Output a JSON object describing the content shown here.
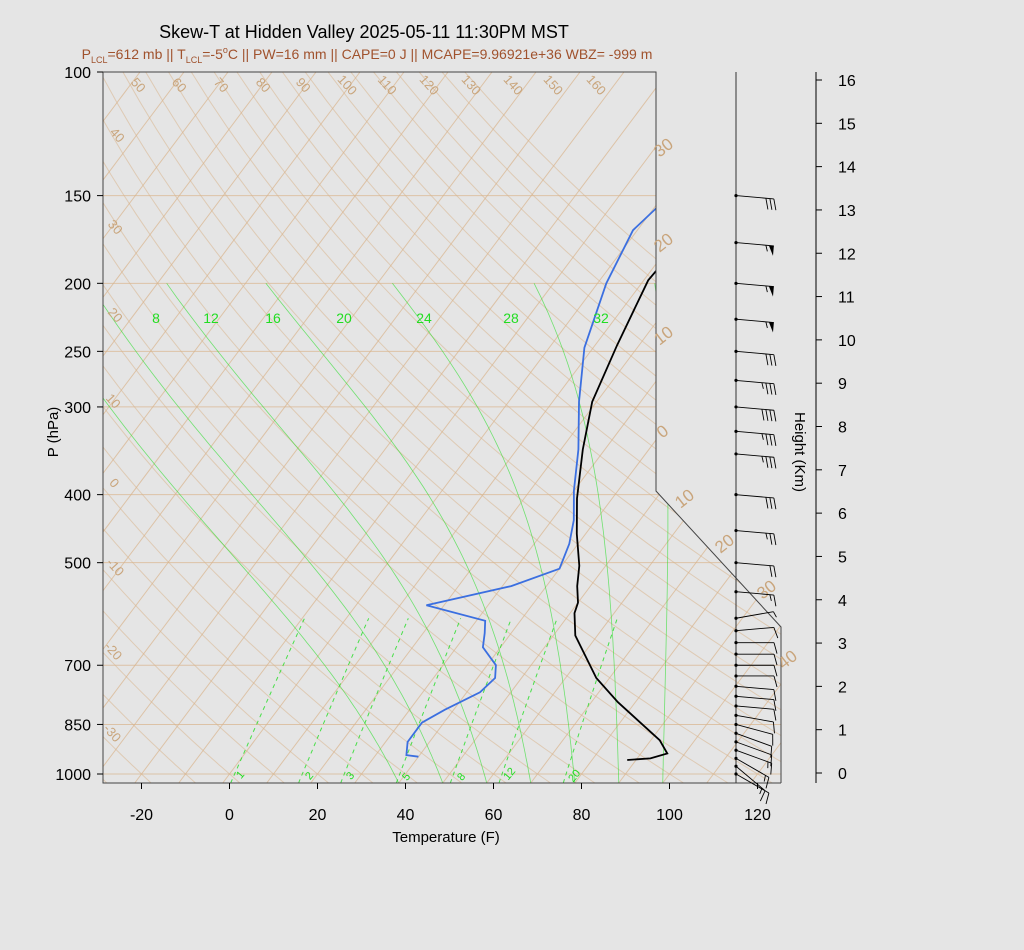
{
  "title": "Skew-T at Hidden Valley 2025-05-11 11:30PM MST",
  "subtitle": {
    "p_lcl": "=612 mb || T",
    "t_lcl": "=-5",
    "rest": "C || PW=16 mm || CAPE=0 J || MCAPE=9.96921e+36 WBZ= -999 m",
    "lcl_sub": "LCL",
    "deg": "o",
    "P": "P",
    "T": "T"
  },
  "colors": {
    "temperature": "#000000",
    "dewpoint": "#3b6fe0",
    "isotherm": "#d9b48c",
    "mixing_ratio": "#22dd22",
    "background": "#e5e5e5"
  },
  "chart_data": {
    "type": "line",
    "title": "Skew-T at Hidden Valley 2025-05-11 11:30PM MST",
    "xlabel": "Temperature (F)",
    "ylabel": "P (hPa)",
    "y2label": "Height (Km)",
    "xlim": [
      -28,
      125
    ],
    "ylim": [
      1030,
      100
    ],
    "x_ticks": [
      -20,
      0,
      20,
      40,
      60,
      80,
      100,
      120
    ],
    "p_ticks": [
      100,
      150,
      200,
      250,
      300,
      400,
      500,
      700,
      850,
      1000
    ],
    "height_ticks": [
      0,
      1,
      2,
      3,
      4,
      5,
      6,
      7,
      8,
      9,
      10,
      11,
      12,
      13,
      14,
      15,
      16
    ],
    "isotherm_labels_top": [
      "50",
      "60",
      "70",
      "80",
      "90",
      "100",
      "110",
      "120",
      "130",
      "140",
      "150",
      "160"
    ],
    "isotherm_labels_left": [
      "40",
      "30",
      "20",
      "10",
      "0",
      "-10",
      "-20",
      "-30"
    ],
    "isotherm_labels_right": [
      "30",
      "20",
      "10",
      "0",
      "10",
      "20",
      "30",
      "40"
    ],
    "mixing_ratio_labels_upper": [
      "8",
      "12",
      "16",
      "20",
      "24",
      "28",
      "32"
    ],
    "mixing_ratio_labels_lower": [
      "1",
      "2",
      "3",
      "5",
      "8",
      "12",
      "20"
    ],
    "series": [
      {
        "name": "Temperature",
        "points": [
          [
            88,
            955
          ],
          [
            93,
            950
          ],
          [
            96,
            935
          ],
          [
            92,
            895
          ],
          [
            76,
            790
          ],
          [
            67,
            730
          ],
          [
            55,
            635
          ],
          [
            51,
            590
          ],
          [
            50,
            570
          ],
          [
            47,
            540
          ],
          [
            44,
            505
          ],
          [
            38,
            455
          ],
          [
            32,
            405
          ],
          [
            25,
            345
          ],
          [
            19,
            295
          ],
          [
            15,
            245
          ],
          [
            11,
            198
          ],
          [
            12,
            170
          ],
          [
            23,
            138
          ],
          [
            36,
            112
          ],
          [
            42,
            100
          ]
        ]
      },
      {
        "name": "Dewpoint",
        "points": [
          [
            40,
            945
          ],
          [
            37,
            940
          ],
          [
            35,
            900
          ],
          [
            35,
            845
          ],
          [
            38,
            810
          ],
          [
            43,
            765
          ],
          [
            44,
            730
          ],
          [
            42,
            700
          ],
          [
            36,
            660
          ],
          [
            34,
            630
          ],
          [
            32,
            605
          ],
          [
            16,
            575
          ],
          [
            32,
            540
          ],
          [
            40,
            510
          ],
          [
            38,
            470
          ],
          [
            35,
            435
          ],
          [
            30,
            395
          ],
          [
            24,
            345
          ],
          [
            16,
            295
          ],
          [
            8,
            247
          ],
          [
            2,
            200
          ],
          [
            -1,
            168
          ],
          [
            4,
            133
          ],
          [
            20,
            100
          ]
        ]
      }
    ],
    "wind_barbs": [
      {
        "p": 1000,
        "dir": 300,
        "spd": 10
      },
      {
        "p": 975,
        "dir": 310,
        "spd": 15
      },
      {
        "p": 950,
        "dir": 300,
        "spd": 15
      },
      {
        "p": 925,
        "dir": 290,
        "spd": 15
      },
      {
        "p": 900,
        "dir": 290,
        "spd": 10
      },
      {
        "p": 875,
        "dir": 290,
        "spd": 10
      },
      {
        "p": 850,
        "dir": 285,
        "spd": 10
      },
      {
        "p": 825,
        "dir": 280,
        "spd": 10
      },
      {
        "p": 800,
        "dir": 275,
        "spd": 10
      },
      {
        "p": 775,
        "dir": 275,
        "spd": 10
      },
      {
        "p": 750,
        "dir": 275,
        "spd": 10
      },
      {
        "p": 725,
        "dir": 270,
        "spd": 10
      },
      {
        "p": 700,
        "dir": 270,
        "spd": 10
      },
      {
        "p": 675,
        "dir": 270,
        "spd": 10
      },
      {
        "p": 650,
        "dir": 270,
        "spd": 10
      },
      {
        "p": 625,
        "dir": 265,
        "spd": 10
      },
      {
        "p": 600,
        "dir": 260,
        "spd": 5
      },
      {
        "p": 550,
        "dir": 275,
        "spd": 15
      },
      {
        "p": 500,
        "dir": 275,
        "spd": 20
      },
      {
        "p": 450,
        "dir": 275,
        "spd": 25
      },
      {
        "p": 400,
        "dir": 275,
        "spd": 30
      },
      {
        "p": 350,
        "dir": 275,
        "spd": 35
      },
      {
        "p": 325,
        "dir": 275,
        "spd": 35
      },
      {
        "p": 300,
        "dir": 275,
        "spd": 40
      },
      {
        "p": 275,
        "dir": 275,
        "spd": 35
      },
      {
        "p": 250,
        "dir": 275,
        "spd": 30
      },
      {
        "p": 225,
        "dir": 275,
        "spd": 55
      },
      {
        "p": 200,
        "dir": 275,
        "spd": 55
      },
      {
        "p": 175,
        "dir": 275,
        "spd": 55
      },
      {
        "p": 150,
        "dir": 275,
        "spd": 30
      }
    ]
  }
}
